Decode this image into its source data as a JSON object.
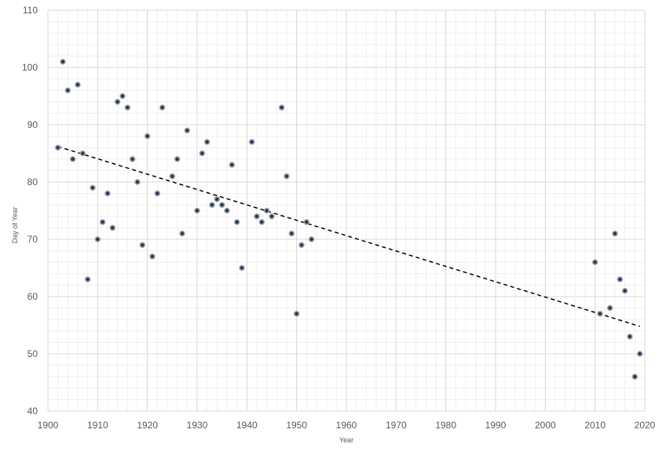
{
  "chart_data": {
    "type": "scatter",
    "title": "",
    "xlabel": "Year",
    "ylabel": "Day of Year",
    "xlim": [
      1900,
      2020
    ],
    "ylim": [
      40,
      110
    ],
    "x_ticks": [
      1900,
      1910,
      1920,
      1930,
      1940,
      1950,
      1960,
      1970,
      1980,
      1990,
      2000,
      2010,
      2020
    ],
    "y_ticks": [
      40,
      50,
      60,
      70,
      80,
      90,
      100,
      110
    ],
    "x_minor_step": 2,
    "y_minor_step": 2,
    "grid": true,
    "legend": "none",
    "colors": {
      "marker_fill": "#1f3864",
      "marker_stroke": "#a6a6a6",
      "trendline": "#000000",
      "grid_major": "#d9d9d9",
      "grid_minor": "#efefef",
      "axis_text": "#595959"
    },
    "series": [
      {
        "points": [
          [
            1902,
            86
          ],
          [
            1903,
            101
          ],
          [
            1904,
            96
          ],
          [
            1905,
            84
          ],
          [
            1906,
            97
          ],
          [
            1907,
            85
          ],
          [
            1908,
            63
          ],
          [
            1909,
            79
          ],
          [
            1910,
            70
          ],
          [
            1911,
            73
          ],
          [
            1912,
            78
          ],
          [
            1913,
            72
          ],
          [
            1914,
            94
          ],
          [
            1915,
            95
          ],
          [
            1916,
            93
          ],
          [
            1917,
            84
          ],
          [
            1918,
            80
          ],
          [
            1919,
            69
          ],
          [
            1920,
            88
          ],
          [
            1921,
            67
          ],
          [
            1922,
            78
          ],
          [
            1923,
            93
          ],
          [
            1925,
            81
          ],
          [
            1926,
            84
          ],
          [
            1927,
            71
          ],
          [
            1928,
            89
          ],
          [
            1930,
            75
          ],
          [
            1931,
            85
          ],
          [
            1932,
            87
          ],
          [
            1933,
            76
          ],
          [
            1934,
            77
          ],
          [
            1935,
            76
          ],
          [
            1936,
            75
          ],
          [
            1937,
            83
          ],
          [
            1938,
            73
          ],
          [
            1939,
            65
          ],
          [
            1941,
            87
          ],
          [
            1942,
            74
          ],
          [
            1943,
            73
          ],
          [
            1944,
            75
          ],
          [
            1945,
            74
          ],
          [
            1947,
            93
          ],
          [
            1948,
            81
          ],
          [
            1949,
            71
          ],
          [
            1950,
            57
          ],
          [
            1951,
            69
          ],
          [
            1952,
            73
          ],
          [
            1953,
            70
          ],
          [
            2010,
            66
          ],
          [
            2011,
            57
          ],
          [
            2013,
            58
          ],
          [
            2014,
            71
          ],
          [
            2015,
            63
          ],
          [
            2016,
            61
          ],
          [
            2017,
            53
          ],
          [
            2018,
            46
          ],
          [
            2019,
            50
          ]
        ]
      }
    ],
    "trendline": {
      "type": "linear",
      "style": "dashed",
      "points": [
        [
          1902,
          86.2
        ],
        [
          2019,
          54.8
        ]
      ]
    }
  }
}
